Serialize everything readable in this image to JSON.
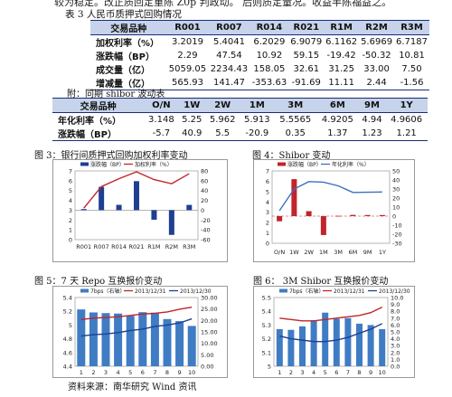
{
  "cut_text": "较为稳定。改正质回定重陈 Z0p 判政动。 后则质定量况。收益半陈福益之。",
  "table3": {
    "title": "表 3 人民币质押式回购情况",
    "header": [
      "交易品种",
      "R001",
      "R007",
      "R014",
      "R021",
      "R1M",
      "R2M",
      "R3M"
    ],
    "rows": [
      [
        "加权利率（%）",
        "3.2019",
        "5.4041",
        "6.2029",
        "6.9079",
        "6.1162",
        "5.6969",
        "6.7187"
      ],
      [
        "涨跌幅（BP）",
        "2.29",
        "47.54",
        "10.92",
        "59.15",
        "-19.42",
        "-50.32",
        "10.81"
      ],
      [
        "成交量（亿）",
        "5059.05",
        "2234.43",
        "158.05",
        "32.61",
        "31.25",
        "33.00",
        "7.50"
      ],
      [
        "增减量（亿）",
        "565.93",
        "141.47",
        "-353.63",
        "-91.69",
        "11.11",
        "2.44",
        "-1.56"
      ]
    ]
  },
  "shibor_table": {
    "title": "附：同期 shibor 波动表",
    "header": [
      "交易品种",
      "O/N",
      "1W",
      "2W",
      "1M",
      "3M",
      "6M",
      "9M",
      "1Y"
    ],
    "rows": [
      [
        "年化利率（%）",
        "3.148",
        "5.25",
        "5.962",
        "5.913",
        "5.5565",
        "4.9205",
        "4.94",
        "4.9606"
      ],
      [
        "涨跌幅（BP）",
        "-5.7",
        "40.9",
        "5.5",
        "-20.9",
        "0.35",
        "1.37",
        "1.23",
        "1.21"
      ]
    ]
  },
  "fig3_title": "图 3：银行间质押式回购加权利率变动",
  "fig4_title": "图 4：Shibor 变动",
  "fig5_title": "图 5：7 天 Repo 互换报价变动",
  "fig6_title": "图 6： 3M Shibor 互换报价变动",
  "source": "资料来源：南华研究  Wind 资讯",
  "colors": {
    "bar": "#1f3f92",
    "line": "#c0252b",
    "line_blue": "#3e6fc0",
    "hdr_bg": "#c6d3ea",
    "repo_bar": "#3f7cc4"
  },
  "chart_data": [
    {
      "type": "bar",
      "categories": [
        "R001",
        "R007",
        "R014",
        "R021",
        "R1M",
        "R2M",
        "R3M"
      ],
      "series": [
        {
          "name": "涨跌幅（BP）",
          "type": "bar",
          "axis": "right",
          "values": [
            2.29,
            47.54,
            10.92,
            59.15,
            -19.42,
            -50.32,
            10.81
          ]
        },
        {
          "name": "加权利率（%）",
          "type": "line",
          "axis": "left",
          "values": [
            3.2019,
            5.4041,
            6.2029,
            6.9079,
            6.1162,
            5.6969,
            6.7187
          ]
        }
      ],
      "left_ticks": [
        "0",
        "1",
        "2",
        "3",
        "4",
        "5",
        "6",
        "7"
      ],
      "left_range": [
        0,
        7
      ],
      "right_ticks": [
        "-60",
        "-40",
        "-20",
        "0",
        "20",
        "40",
        "60",
        "80"
      ],
      "right_range": [
        -60,
        80
      ],
      "legend": "top"
    },
    {
      "type": "bar",
      "categories": [
        "O/N",
        "1W",
        "2W",
        "1M",
        "3M",
        "6M",
        "9M",
        "1Y"
      ],
      "series": [
        {
          "name": "涨跌幅（BP）",
          "type": "bar",
          "axis": "right",
          "values": [
            -5.7,
            40.9,
            5.5,
            -20.9,
            0.35,
            1.37,
            1.23,
            1.21
          ]
        },
        {
          "name": "年化利率（%）",
          "type": "line",
          "axis": "left",
          "values": [
            3.148,
            5.25,
            5.962,
            5.913,
            5.5565,
            4.9205,
            4.94,
            4.9606
          ]
        }
      ],
      "left_ticks": [
        "0",
        "1",
        "2",
        "3",
        "4",
        "5",
        "6",
        "7"
      ],
      "left_range": [
        0,
        7
      ],
      "right_ticks": [
        "-30",
        "-20",
        "-10",
        "0",
        "10",
        "20",
        "30",
        "40",
        "50"
      ],
      "right_range": [
        -30,
        50
      ],
      "legend": "top"
    },
    {
      "type": "bar",
      "categories": [
        "1",
        "2",
        "3",
        "4",
        "5",
        "6",
        "7",
        "8",
        "9",
        "10"
      ],
      "series": [
        {
          "name": "7bps（右轴）",
          "type": "bar",
          "axis": "right",
          "values": [
            24.8,
            23.5,
            23.2,
            23.0,
            22.0,
            23.6,
            23.4,
            20.6,
            19.7,
            17.6
          ]
        },
        {
          "name": "2013/12/31",
          "type": "line",
          "color": "#c0252b",
          "axis": "left",
          "values": [
            5.08,
            5.1,
            5.11,
            5.12,
            5.14,
            5.16,
            5.17,
            5.19,
            5.23,
            5.26
          ]
        },
        {
          "name": "2013/12/30",
          "type": "line",
          "color": "#1f3f92",
          "axis": "left",
          "values": [
            4.84,
            4.86,
            4.87,
            4.89,
            4.92,
            4.94,
            4.98,
            5.0,
            5.03,
            5.09
          ]
        }
      ],
      "left_ticks": [
        "4.4",
        "4.6",
        "4.8",
        "5",
        "5.2",
        "5.4"
      ],
      "left_range": [
        4.4,
        5.4
      ],
      "right_ticks": [
        "0.00",
        "5.00",
        "10.00",
        "15.00",
        "20.00",
        "25.00",
        "30.00"
      ],
      "right_range": [
        0,
        30
      ],
      "legend": "top"
    },
    {
      "type": "bar",
      "categories": [
        "1",
        "2",
        "3",
        "4",
        "5",
        "6",
        "7",
        "8",
        "9",
        "10"
      ],
      "series": [
        {
          "name": "7bps（右轴）",
          "type": "bar",
          "axis": "right",
          "values": [
            5.4,
            5.3,
            5.8,
            6.7,
            7.8,
            6.9,
            7.0,
            6.2,
            6.0,
            5.4
          ]
        },
        {
          "name": "2013/12/31",
          "type": "line",
          "color": "#c0252b",
          "axis": "left",
          "values": [
            5.35,
            5.34,
            5.33,
            5.33,
            5.34,
            5.35,
            5.36,
            5.37,
            5.39,
            5.43
          ]
        },
        {
          "name": "2013/12/30",
          "type": "line",
          "color": "#1f3f92",
          "axis": "left",
          "values": [
            5.22,
            5.2,
            5.19,
            5.18,
            5.18,
            5.19,
            5.21,
            5.24,
            5.27,
            5.31
          ]
        }
      ],
      "left_ticks": [
        "5",
        "5.1",
        "5.2",
        "5.3",
        "5.4",
        "5.5"
      ],
      "left_range": [
        5.0,
        5.5
      ],
      "right_ticks": [
        "0.0",
        "1.0",
        "2.0",
        "3.0",
        "4.0",
        "5.0",
        "6.0",
        "7.0",
        "8.0",
        "9.0",
        "10.0"
      ],
      "right_range": [
        0,
        10
      ],
      "legend": "top"
    }
  ]
}
